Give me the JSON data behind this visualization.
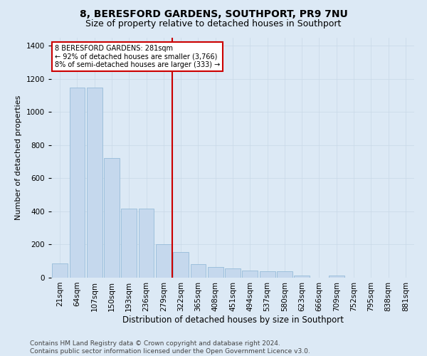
{
  "title": "8, BERESFORD GARDENS, SOUTHPORT, PR9 7NU",
  "subtitle": "Size of property relative to detached houses in Southport",
  "xlabel": "Distribution of detached houses by size in Southport",
  "ylabel": "Number of detached properties",
  "categories": [
    "21sqm",
    "64sqm",
    "107sqm",
    "150sqm",
    "193sqm",
    "236sqm",
    "279sqm",
    "322sqm",
    "365sqm",
    "408sqm",
    "451sqm",
    "494sqm",
    "537sqm",
    "580sqm",
    "623sqm",
    "666sqm",
    "709sqm",
    "752sqm",
    "795sqm",
    "838sqm",
    "881sqm"
  ],
  "values": [
    85,
    1145,
    1145,
    720,
    415,
    415,
    200,
    155,
    80,
    65,
    55,
    45,
    40,
    40,
    12,
    0,
    12,
    0,
    0,
    0,
    0
  ],
  "bar_color": "#c5d8ed",
  "bar_edge_color": "#8ab4d4",
  "vline_index": 6.5,
  "annotation_text": "8 BERESFORD GARDENS: 281sqm\n← 92% of detached houses are smaller (3,766)\n8% of semi-detached houses are larger (333) →",
  "annotation_box_color": "#ffffff",
  "annotation_box_edge_color": "#cc0000",
  "vline_color": "#cc0000",
  "ylim": [
    0,
    1450
  ],
  "yticks": [
    0,
    200,
    400,
    600,
    800,
    1000,
    1200,
    1400
  ],
  "grid_color": "#c8d8e8",
  "bg_color": "#dce9f5",
  "plot_bg_color": "#dce9f5",
  "footer": "Contains HM Land Registry data © Crown copyright and database right 2024.\nContains public sector information licensed under the Open Government Licence v3.0.",
  "title_fontsize": 10,
  "subtitle_fontsize": 9,
  "xlabel_fontsize": 8.5,
  "ylabel_fontsize": 8,
  "tick_fontsize": 7.5,
  "footer_fontsize": 6.5
}
